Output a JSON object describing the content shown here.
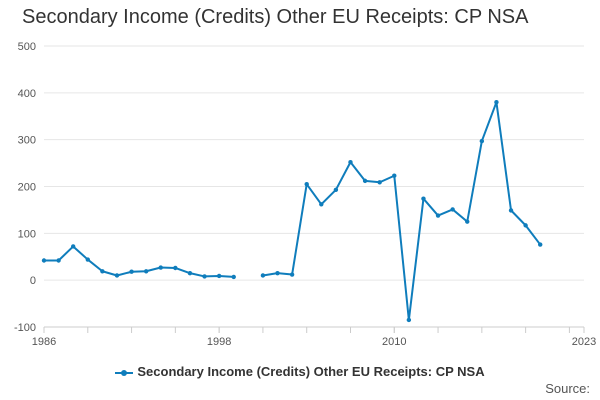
{
  "title": "Secondary Income (Credits) Other EU Receipts: CP NSA",
  "source_label": "Source:",
  "legend_label": "Secondary Income (Credits) Other EU Receipts: CP NSA",
  "colors": {
    "series": "#0f7dbc",
    "grid": "#e6e6e6",
    "axis": "#cccccc"
  },
  "chart_data": {
    "type": "line",
    "title": "Secondary Income (Credits) Other EU Receipts: CP NSA",
    "xlabel": "",
    "ylabel": "",
    "ylim": [
      -100,
      500
    ],
    "yticks": [
      -100,
      0,
      100,
      200,
      300,
      400,
      500
    ],
    "xlim": [
      1986,
      2023
    ],
    "xticks": [
      1986,
      1998,
      2010,
      2023
    ],
    "grid": true,
    "legend": "bottom",
    "series": [
      {
        "name": "Secondary Income (Credits) Other EU Receipts: CP NSA",
        "x": [
          1986,
          1987,
          1988,
          1989,
          1990,
          1991,
          1992,
          1993,
          1994,
          1995,
          1996,
          1997,
          1998,
          1999,
          2000,
          2001,
          2002,
          2003,
          2004,
          2005,
          2006,
          2007,
          2008,
          2009,
          2010,
          2011,
          2012,
          2013,
          2014,
          2015,
          2016,
          2017,
          2018,
          2019,
          2020
        ],
        "values": [
          42,
          42,
          72,
          44,
          19,
          10,
          18,
          19,
          27,
          26,
          15,
          8,
          9,
          7,
          null,
          10,
          15,
          12,
          205,
          162,
          193,
          252,
          212,
          209,
          223,
          -85,
          174,
          138,
          151,
          125,
          297,
          380,
          149,
          117,
          76
        ]
      }
    ]
  }
}
